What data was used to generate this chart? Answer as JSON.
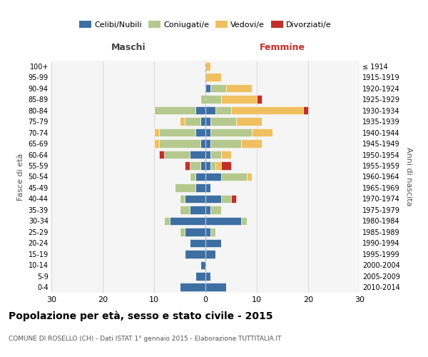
{
  "age_groups": [
    "0-4",
    "5-9",
    "10-14",
    "15-19",
    "20-24",
    "25-29",
    "30-34",
    "35-39",
    "40-44",
    "45-49",
    "50-54",
    "55-59",
    "60-64",
    "65-69",
    "70-74",
    "75-79",
    "80-84",
    "85-89",
    "90-94",
    "95-99",
    "100+"
  ],
  "birth_years": [
    "2010-2014",
    "2005-2009",
    "2000-2004",
    "1995-1999",
    "1990-1994",
    "1985-1989",
    "1980-1984",
    "1975-1979",
    "1970-1974",
    "1965-1969",
    "1960-1964",
    "1955-1959",
    "1950-1954",
    "1945-1949",
    "1940-1944",
    "1935-1939",
    "1930-1934",
    "1925-1929",
    "1920-1924",
    "1915-1919",
    "≤ 1914"
  ],
  "colors": {
    "celibi": "#3e6fa3",
    "coniugati": "#b5c98e",
    "vedovi": "#f0c060",
    "divorziati": "#c0302a"
  },
  "maschi": {
    "celibi": [
      5,
      2,
      1,
      4,
      3,
      4,
      7,
      3,
      4,
      2,
      2,
      1,
      3,
      1,
      2,
      1,
      2,
      0,
      0,
      0,
      0
    ],
    "coniugati": [
      0,
      0,
      0,
      0,
      0,
      1,
      1,
      2,
      1,
      4,
      1,
      2,
      5,
      8,
      7,
      3,
      8,
      1,
      0,
      0,
      0
    ],
    "vedovi": [
      0,
      0,
      0,
      0,
      0,
      0,
      0,
      0,
      0,
      0,
      0,
      0,
      0,
      1,
      1,
      1,
      0,
      0,
      0,
      0,
      0
    ],
    "divorziati": [
      0,
      0,
      0,
      0,
      0,
      0,
      0,
      0,
      0,
      0,
      0,
      1,
      1,
      0,
      0,
      0,
      0,
      0,
      0,
      0,
      0
    ]
  },
  "femmine": {
    "celibi": [
      4,
      1,
      0,
      2,
      3,
      1,
      7,
      1,
      3,
      1,
      3,
      1,
      1,
      1,
      1,
      1,
      2,
      0,
      1,
      0,
      0
    ],
    "coniugati": [
      0,
      0,
      0,
      0,
      0,
      1,
      1,
      2,
      2,
      0,
      5,
      1,
      2,
      6,
      8,
      5,
      3,
      3,
      3,
      0,
      0
    ],
    "vedovi": [
      0,
      0,
      0,
      0,
      0,
      0,
      0,
      0,
      0,
      0,
      1,
      1,
      2,
      4,
      4,
      5,
      14,
      7,
      5,
      3,
      1
    ],
    "divorziati": [
      0,
      0,
      0,
      0,
      0,
      0,
      0,
      0,
      1,
      0,
      0,
      2,
      0,
      0,
      0,
      0,
      1,
      1,
      0,
      0,
      0
    ]
  },
  "xlim": 30,
  "title": "Popolazione per età, sesso e stato civile - 2015",
  "subtitle": "COMUNE DI ROSELLO (CH) - Dati ISTAT 1° gennaio 2015 - Elaborazione TUTTITALIA.IT",
  "ylabel_left": "Fasce di età",
  "ylabel_right": "Anni di nascita",
  "xlabel_left": "Maschi",
  "xlabel_right": "Femmine",
  "bg_color": "#f5f5f5",
  "bar_height": 0.75
}
